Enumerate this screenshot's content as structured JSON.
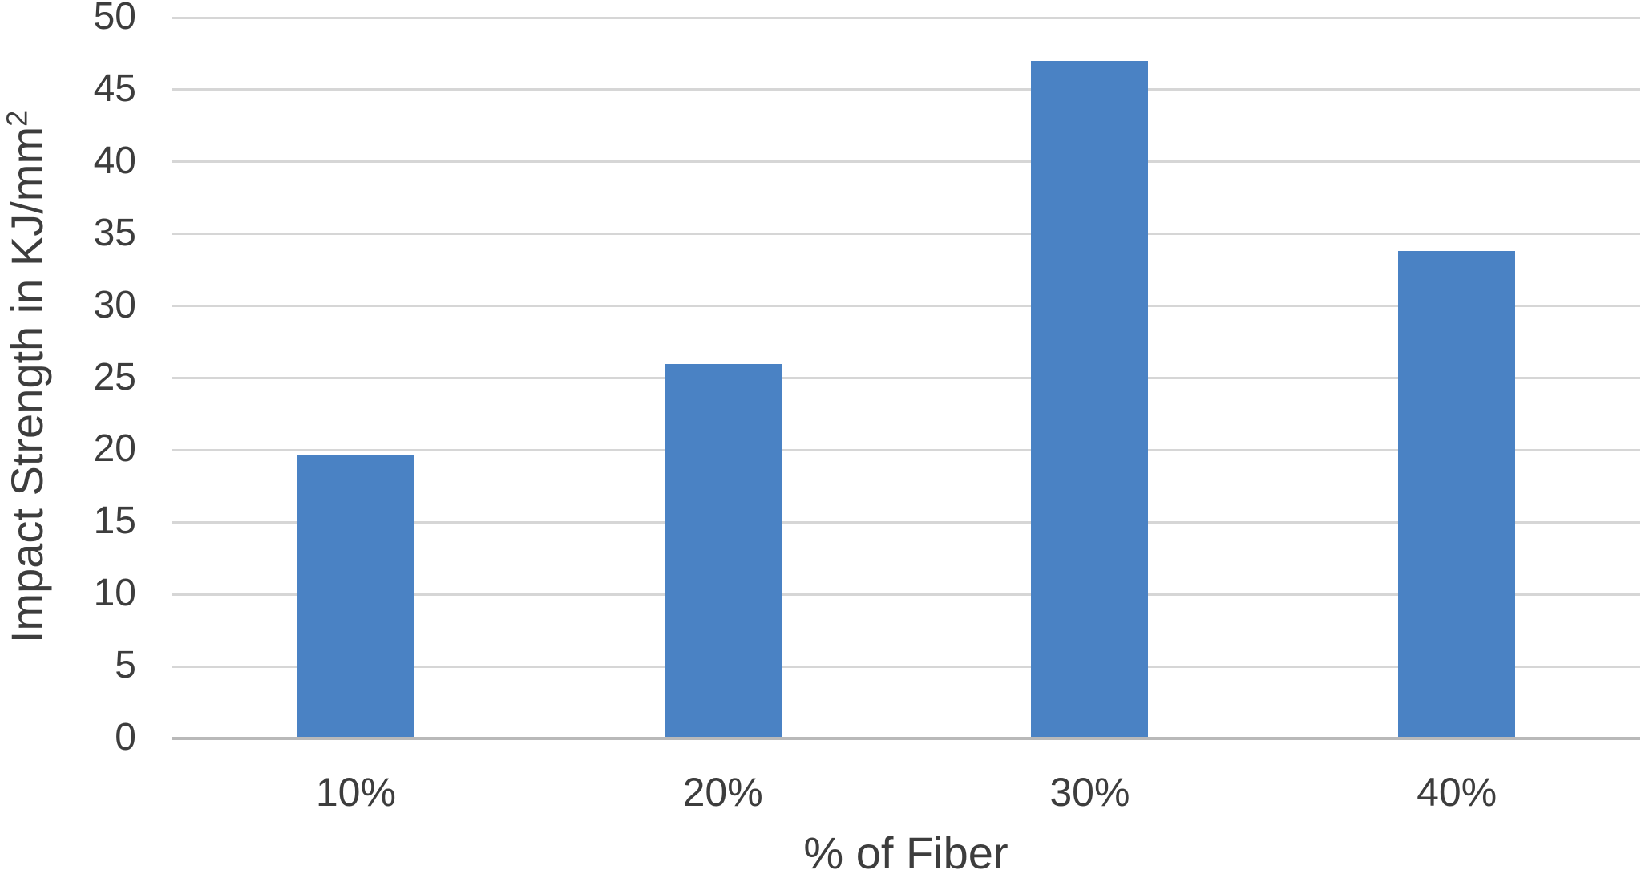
{
  "chart_data": {
    "type": "bar",
    "title": "",
    "categories": [
      "10%",
      "20%",
      "30%",
      "40%"
    ],
    "values": [
      19.7,
      26,
      47,
      33.8
    ],
    "xlabel": "% of Fiber",
    "ylabel": "Impact Strength in KJ/mm²",
    "ylabel_base": "Impact Strength in KJ/mm",
    "ylabel_exponent": "2",
    "ylim": [
      0,
      50
    ],
    "ytick_step": 5,
    "yticks": [
      0,
      5,
      10,
      15,
      20,
      25,
      30,
      35,
      40,
      45,
      50
    ],
    "grid": true,
    "legend": false,
    "bar_color": "#4a82c4",
    "gridline_color": "#d6d6d6",
    "axis_line_color": "#b9b9b9",
    "text_color": "#3d3d3d"
  }
}
